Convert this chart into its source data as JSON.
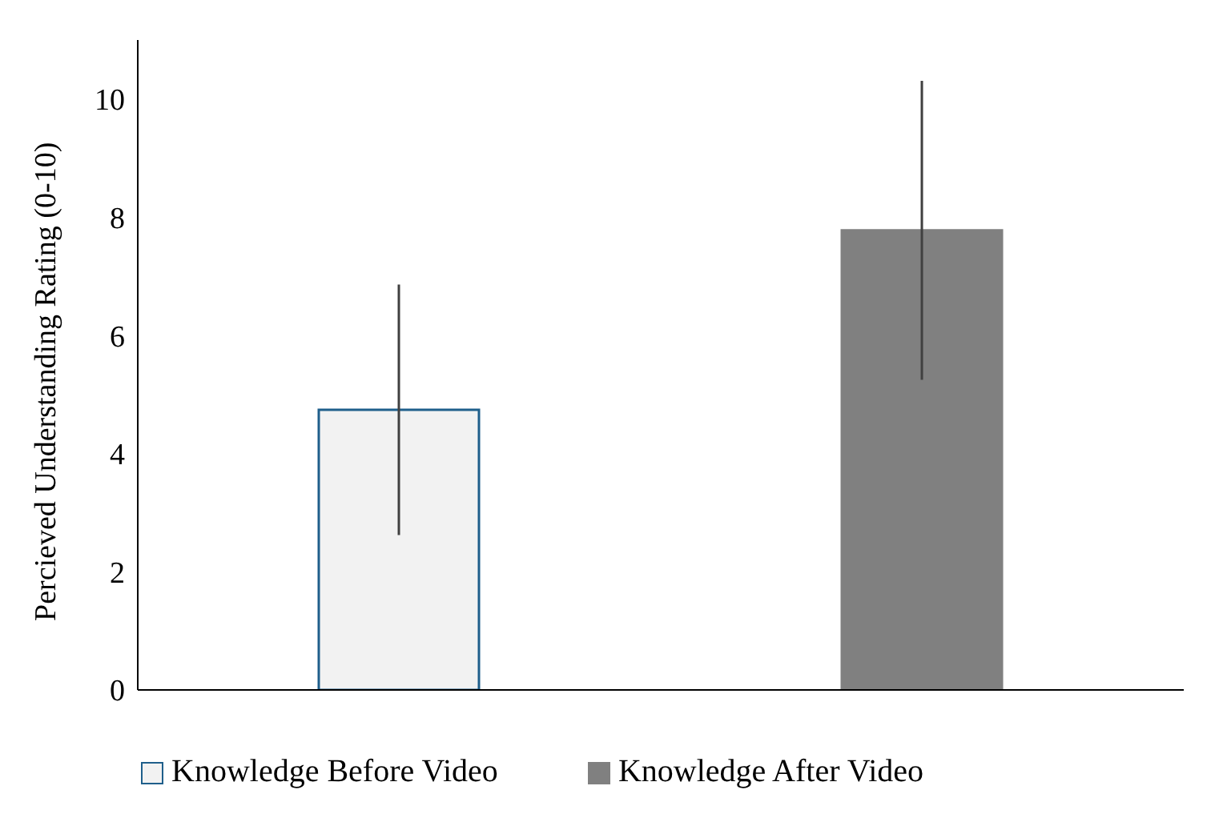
{
  "chart_data": {
    "type": "bar",
    "ylabel": "Percieved Understanding Rating (0-10)",
    "categories": [
      null,
      null
    ],
    "series": [
      {
        "name": "Knowledge Before Video",
        "color": "#f2f2f2",
        "values": [
          4.74,
          null
        ],
        "errors": [
          2.12,
          null
        ]
      },
      {
        "name": "Knowledge After Video",
        "color": "#808080",
        "values": [
          null,
          7.78
        ],
        "errors": [
          null,
          2.53
        ]
      }
    ],
    "ylim": [
      0,
      11
    ],
    "yticks": [
      0,
      2,
      4,
      6,
      8,
      10
    ],
    "grid": false,
    "legend": "bottom"
  }
}
